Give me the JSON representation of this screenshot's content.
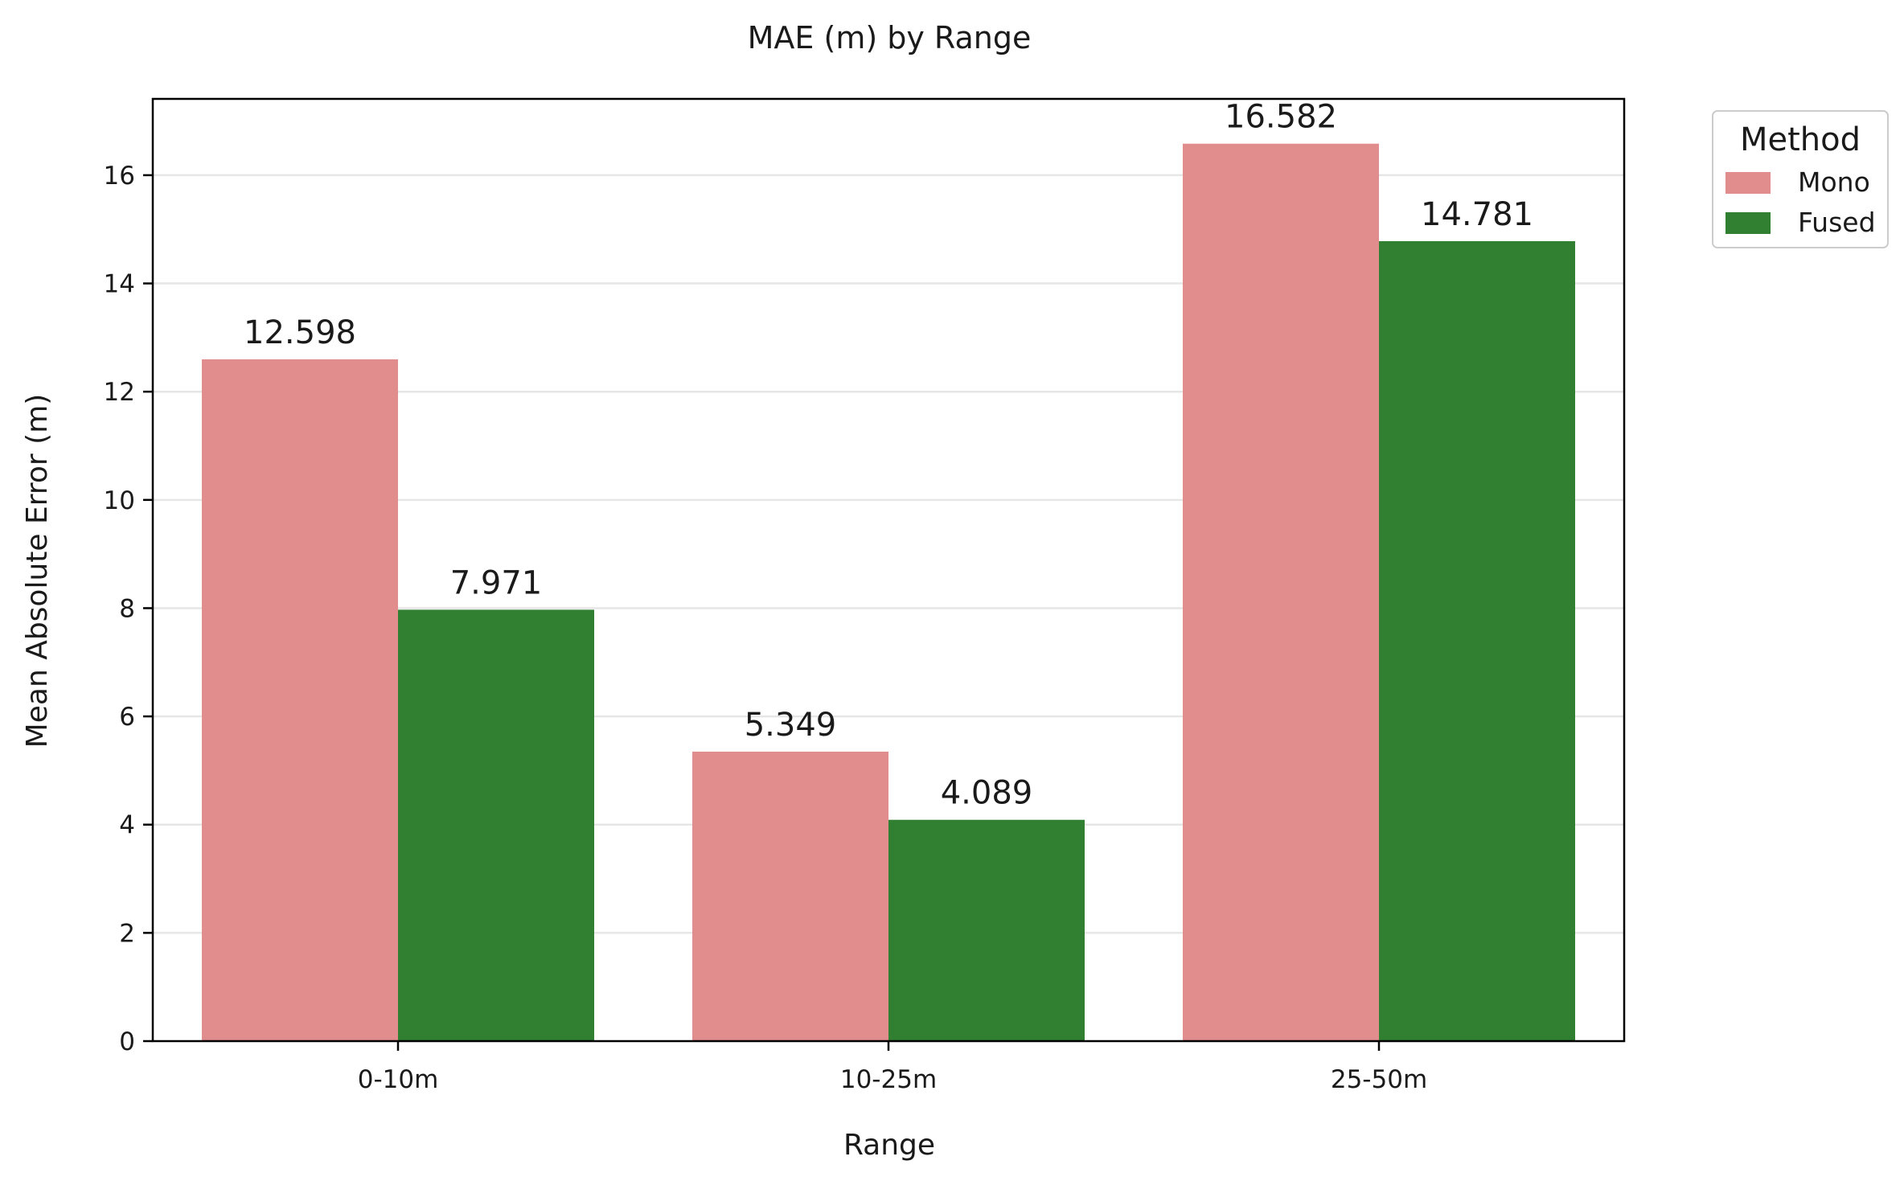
{
  "chart_data": {
    "type": "bar",
    "title": "MAE (m) by Range",
    "xlabel": "Range",
    "ylabel": "Mean Absolute Error (m)",
    "categories": [
      "0-10m",
      "10-25m",
      "25-50m"
    ],
    "series": [
      {
        "name": "Mono",
        "color": "#e18c8d",
        "values": [
          12.598,
          5.349,
          16.582
        ],
        "labels": [
          "12.598",
          "5.349",
          "16.582"
        ]
      },
      {
        "name": "Fused",
        "color": "#317f30",
        "values": [
          7.971,
          4.089,
          14.781
        ],
        "labels": [
          "7.971",
          "4.089",
          "14.781"
        ]
      }
    ],
    "ylim": [
      0,
      17.41
    ],
    "yticks": [
      0,
      2,
      4,
      6,
      8,
      10,
      12,
      14,
      16
    ],
    "ytick_labels": [
      "0",
      "2",
      "4",
      "6",
      "8",
      "10",
      "12",
      "14",
      "16"
    ],
    "grid": "horizontal",
    "legend": {
      "title": "Method",
      "placement": "outside-top-right"
    }
  }
}
